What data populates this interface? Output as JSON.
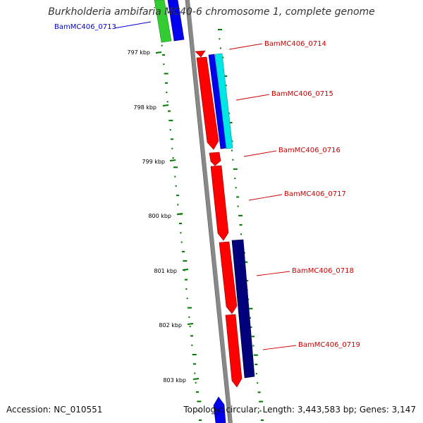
{
  "title": "Burkholderia ambifaria MC40-6 chromosome 1, complete genome",
  "footer": {
    "accession": "Accession: NC_010551",
    "topology": "Topology: circular; Length: 3,443,583 bp; Genes: 3,147"
  },
  "ruler_ticks": [
    "797 kbp",
    "798 kbp",
    "799 kbp",
    "800 kbp",
    "801 kbp",
    "802 kbp",
    "803 kbp"
  ],
  "gene_labels": [
    {
      "name": "BamMC406_0713",
      "color": "#0000cc"
    },
    {
      "name": "BamMC406_0714",
      "color": "#cc0000"
    },
    {
      "name": "BamMC406_0715",
      "color": "#cc0000"
    },
    {
      "name": "BamMC406_0716",
      "color": "#cc0000"
    },
    {
      "name": "BamMC406_0717",
      "color": "#cc0000"
    },
    {
      "name": "BamMC406_0718",
      "color": "#cc0000"
    },
    {
      "name": "BamMC406_0719",
      "color": "#cc0000"
    }
  ],
  "colors": {
    "forward_gene": "#ff0000",
    "reverse_blue": "#0000ee",
    "reverse_navy": "#00007a",
    "cyan_feature": "#00e5e5",
    "green_feature": "#33cc33",
    "backbone": "#888888",
    "gc_dots": "#007700"
  }
}
